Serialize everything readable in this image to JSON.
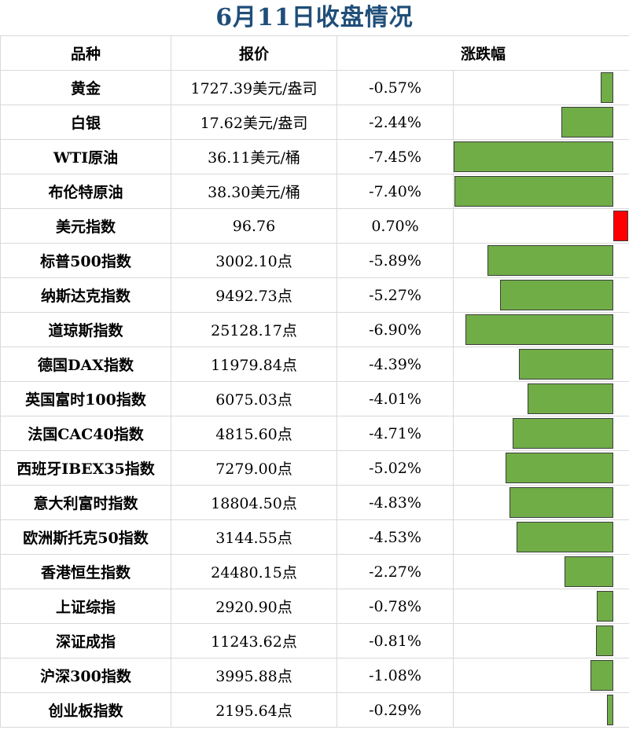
{
  "title": "6月11日收盘情况",
  "headers": {
    "name": "品种",
    "price": "报价",
    "change": "涨跌幅"
  },
  "colors": {
    "negative": "#70ad47",
    "positive": "#ff0000",
    "title": "#1f4e79"
  },
  "chart_data": {
    "type": "bar",
    "categories": [
      "黄金",
      "白银",
      "WTI原油",
      "布伦特原油",
      "美元指数",
      "标普500指数",
      "纳斯达克指数",
      "道琼斯指数",
      "德国DAX指数",
      "英国富时100指数",
      "法国CAC40指数",
      "西班牙IBEX35指数",
      "意大利富时指数",
      "欧洲斯托克50指数",
      "香港恒生指数",
      "上证综指",
      "深证成指",
      "沪深300指数",
      "创业板指数"
    ],
    "prices": [
      "1727.39美元/盎司",
      "17.62美元/盎司",
      "36.11美元/桶",
      "38.30美元/桶",
      "96.76",
      "3002.10点",
      "9492.73点",
      "25128.17点",
      "11979.84点",
      "6075.03点",
      "4815.60点",
      "7279.00点",
      "18804.50点",
      "3144.55点",
      "24480.15点",
      "2920.90点",
      "11243.62点",
      "3995.88点",
      "2195.64点"
    ],
    "values": [
      -0.57,
      -2.44,
      -7.45,
      -7.4,
      0.7,
      -5.89,
      -5.27,
      -6.9,
      -4.39,
      -4.01,
      -4.71,
      -5.02,
      -4.83,
      -4.53,
      -2.27,
      -0.78,
      -0.81,
      -1.08,
      -0.29
    ],
    "labels": [
      "-0.57%",
      "-2.44%",
      "-7.45%",
      "-7.40%",
      "0.70%",
      "-5.89%",
      "-5.27%",
      "-6.90%",
      "-4.39%",
      "-4.01%",
      "-4.71%",
      "-5.02%",
      "-4.83%",
      "-4.53%",
      "-2.27%",
      "-0.78%",
      "-0.81%",
      "-1.08%",
      "-0.29%"
    ],
    "xlim": [
      -7.45,
      0.7
    ]
  }
}
